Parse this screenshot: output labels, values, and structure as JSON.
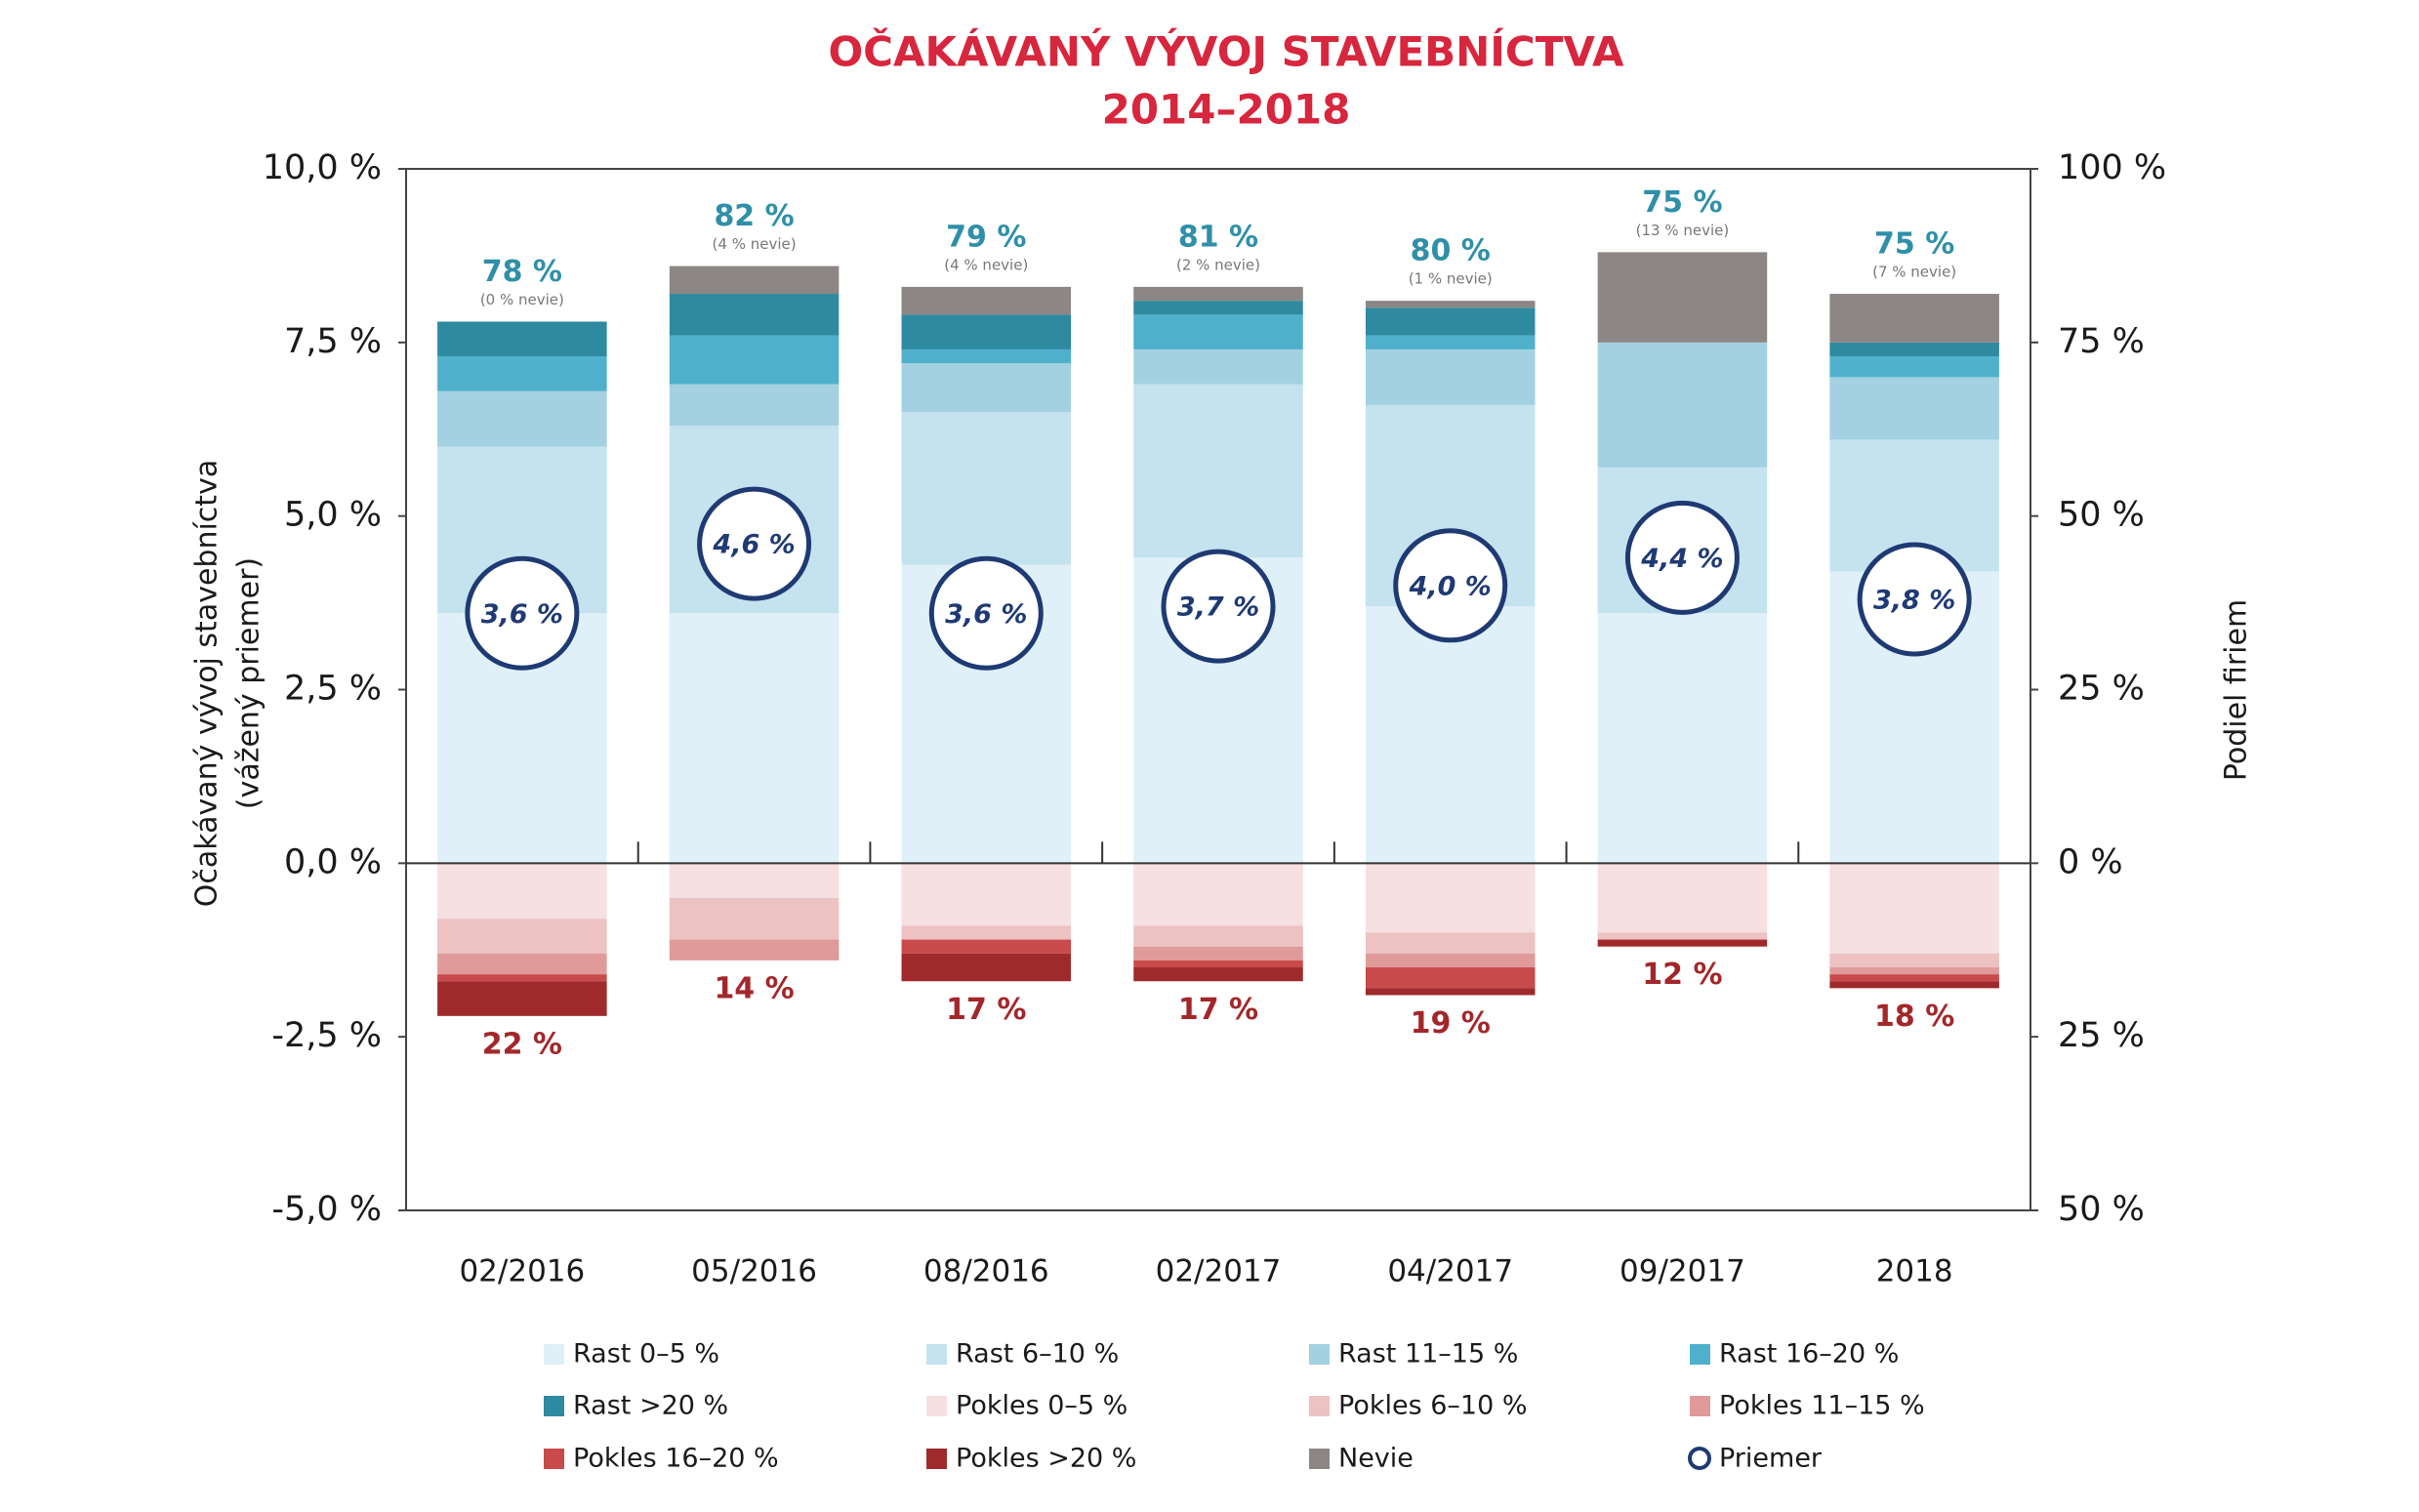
{
  "chart_data": {
    "type": "bar",
    "stacked": true,
    "title": "OČAKÁVANÝ VÝVOJ STAVEBNÍCTVA",
    "subtitle": "2014–2018",
    "y_label": "Očakávaný vývoj stavebníctva",
    "y_label_sub": "(vážený priemer)",
    "y2_label": "Podiel firiem",
    "categories": [
      "02/2016",
      "05/2016",
      "08/2016",
      "02/2017",
      "04/2017",
      "09/2017",
      "2018"
    ],
    "ylim": [
      -5,
      10
    ],
    "yticks": [
      {
        "value": -5,
        "label": "-5,0 %"
      },
      {
        "value": -2.5,
        "label": "-2,5 %"
      },
      {
        "value": 0,
        "label": "0,0 %"
      },
      {
        "value": 2.5,
        "label": "2,5 %"
      },
      {
        "value": 5,
        "label": "5,0 %"
      },
      {
        "value": 7.5,
        "label": "7,5 %"
      },
      {
        "value": 10,
        "label": "10,0 %"
      }
    ],
    "y2lim": [
      -50,
      100
    ],
    "y2ticks": [
      {
        "value": -50,
        "label": "50 %"
      },
      {
        "value": -25,
        "label": "25 %"
      },
      {
        "value": 0,
        "label": "0 %"
      },
      {
        "value": 25,
        "label": "25 %"
      },
      {
        "value": 50,
        "label": "50 %"
      },
      {
        "value": 75,
        "label": "75 %"
      },
      {
        "value": 100,
        "label": "100 %"
      }
    ],
    "series": [
      {
        "name": "Rast 0–5 %",
        "color": "#dff0f8",
        "axis": "y2",
        "values": [
          36,
          36,
          43,
          44,
          37,
          36,
          42
        ]
      },
      {
        "name": "Rast 6–10 %",
        "color": "#c4e3ef",
        "axis": "y2",
        "values": [
          24,
          27,
          22,
          25,
          29,
          21,
          19
        ]
      },
      {
        "name": "Rast 11–15 %",
        "color": "#a3d1e2",
        "axis": "y2",
        "values": [
          8,
          6,
          7,
          5,
          8,
          18,
          9
        ]
      },
      {
        "name": "Rast 16–20 %",
        "color": "#4fb0cc",
        "axis": "y2",
        "values": [
          5,
          7,
          2,
          5,
          2,
          0,
          3
        ]
      },
      {
        "name": "Rast >20 %",
        "color": "#2e8aa0",
        "axis": "y2",
        "values": [
          5,
          6,
          5,
          2,
          4,
          0,
          2
        ]
      },
      {
        "name": "Pokles 0–5 %",
        "color": "#f6e0e1",
        "axis": "y2",
        "values": [
          -8,
          -5,
          -9,
          -9,
          -10,
          -10,
          -13
        ]
      },
      {
        "name": "Pokles 6–10 %",
        "color": "#ecc2c3",
        "axis": "y2",
        "values": [
          -5,
          -6,
          -2,
          -3,
          -3,
          -1,
          -2
        ]
      },
      {
        "name": "Pokles 11–15 %",
        "color": "#e09a9a",
        "axis": "y2",
        "values": [
          -3,
          -3,
          0,
          -2,
          -2,
          0,
          -1
        ]
      },
      {
        "name": "Pokles 16–20 %",
        "color": "#c94a4a",
        "axis": "y2",
        "values": [
          -1,
          0,
          -2,
          -1,
          -3,
          0,
          -1
        ]
      },
      {
        "name": "Pokles >20 %",
        "color": "#9e2a2b",
        "axis": "y2",
        "values": [
          -5,
          0,
          -4,
          -2,
          -1,
          -1,
          -1
        ]
      },
      {
        "name": "Nevie",
        "color": "#8c8685",
        "axis": "y2",
        "values": [
          0,
          4,
          4,
          2,
          1,
          13,
          7
        ]
      },
      {
        "name": "Priemer",
        "color": "#1f3a73",
        "axis": "y",
        "marker": "circle",
        "values": [
          3.6,
          4.6,
          3.6,
          3.7,
          4.0,
          4.4,
          3.8
        ],
        "value_labels": [
          "3,6 %",
          "4,6 %",
          "3,6 %",
          "3,7 %",
          "4,0 %",
          "4,4 %",
          "3,8 %"
        ]
      }
    ],
    "top_labels": [
      "78 %",
      "82 %",
      "79 %",
      "81 %",
      "80 %",
      "75 %",
      "75 %"
    ],
    "top_sublabels": [
      "(0 % nevie)",
      "(4 % nevie)",
      "(4 % nevie)",
      "(2 % nevie)",
      "(1 % nevie)",
      "(13 % nevie)",
      "(7 % nevie)"
    ],
    "bottom_labels": [
      "22 %",
      "14 %",
      "17 %",
      "17 %",
      "19 %",
      "12 %",
      "18 %"
    ]
  }
}
